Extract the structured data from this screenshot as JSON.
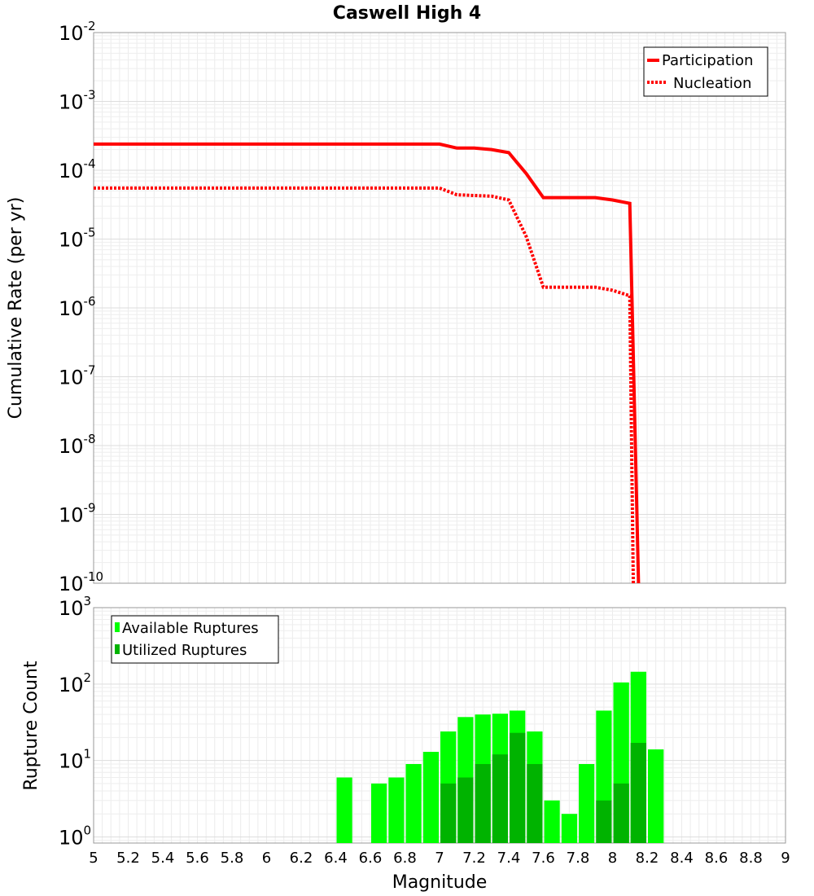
{
  "chart_data": [
    {
      "type": "line",
      "title": "Caswell High 4",
      "xlabel": "Magnitude",
      "ylabel": "Cumulative Rate (per yr)",
      "yscale": "log",
      "xlim": [
        5,
        9
      ],
      "ylim_exponents": [
        -10,
        -2
      ],
      "y_tick_labels": [
        {
          "base": "10",
          "exp": "-2"
        },
        {
          "base": "10",
          "exp": "-3"
        },
        {
          "base": "10",
          "exp": "-4"
        },
        {
          "base": "10",
          "exp": "-5"
        },
        {
          "base": "10",
          "exp": "-6"
        },
        {
          "base": "10",
          "exp": "-7"
        },
        {
          "base": "10",
          "exp": "-8"
        },
        {
          "base": "10",
          "exp": "-9"
        },
        {
          "base": "10",
          "exp": "-10"
        }
      ],
      "legend_position": "top-right",
      "series": [
        {
          "name": "Participation",
          "color": "#ff0000",
          "style": "solid",
          "x": [
            5.0,
            7.0,
            7.1,
            7.2,
            7.3,
            7.4,
            7.5,
            7.6,
            7.7,
            7.8,
            7.9,
            8.0,
            8.1,
            8.15
          ],
          "y": [
            0.00024,
            0.00024,
            0.00021,
            0.00021,
            0.0002,
            0.00018,
            9e-05,
            4e-05,
            4e-05,
            4e-05,
            4e-05,
            3.7e-05,
            3.3e-05,
            1e-10
          ]
        },
        {
          "name": "Nucleation",
          "color": "#ff0000",
          "style": "dotted",
          "x": [
            5.0,
            7.0,
            7.1,
            7.2,
            7.3,
            7.4,
            7.5,
            7.6,
            7.7,
            7.8,
            7.9,
            8.0,
            8.1,
            8.12
          ],
          "y": [
            5.5e-05,
            5.5e-05,
            4.4e-05,
            4.3e-05,
            4.2e-05,
            3.7e-05,
            1.1e-05,
            2e-06,
            2e-06,
            2e-06,
            2e-06,
            1.8e-06,
            1.5e-06,
            1e-10
          ]
        }
      ]
    },
    {
      "type": "bar",
      "xlabel": "Magnitude",
      "ylabel": "Rupture Count",
      "yscale": "log",
      "xlim": [
        5,
        9
      ],
      "ylim_exponents": [
        0,
        3
      ],
      "x_tick_labels": [
        "5",
        "5.2",
        "5.4",
        "5.6",
        "5.8",
        "6",
        "6.2",
        "6.4",
        "6.6",
        "6.8",
        "7",
        "7.2",
        "7.4",
        "7.6",
        "7.8",
        "8",
        "8.2",
        "8.4",
        "8.6",
        "8.8",
        "9"
      ],
      "y_tick_labels": [
        {
          "base": "10",
          "exp": "3"
        },
        {
          "base": "10",
          "exp": "2"
        },
        {
          "base": "10",
          "exp": "1"
        },
        {
          "base": "10",
          "exp": "0"
        }
      ],
      "legend_position": "top-left",
      "bar_width": 0.1,
      "series": [
        {
          "name": "Available Ruptures",
          "color": "#00ff00",
          "x": [
            6.45,
            6.65,
            6.75,
            6.85,
            6.95,
            7.05,
            7.15,
            7.25,
            7.35,
            7.45,
            7.55,
            7.65,
            7.75,
            7.85,
            7.95,
            8.05,
            8.15,
            8.25
          ],
          "values": [
            6,
            5,
            6,
            9,
            13,
            24,
            37,
            40,
            41,
            45,
            24,
            3,
            2,
            9,
            45,
            105,
            145,
            14
          ]
        },
        {
          "name": "Utilized Ruptures",
          "color": "#00b300",
          "x": [
            7.05,
            7.15,
            7.25,
            7.35,
            7.45,
            7.55,
            7.95,
            8.05,
            8.15
          ],
          "values": [
            5,
            6,
            9,
            12,
            23,
            9,
            3,
            5,
            17
          ]
        }
      ]
    }
  ]
}
